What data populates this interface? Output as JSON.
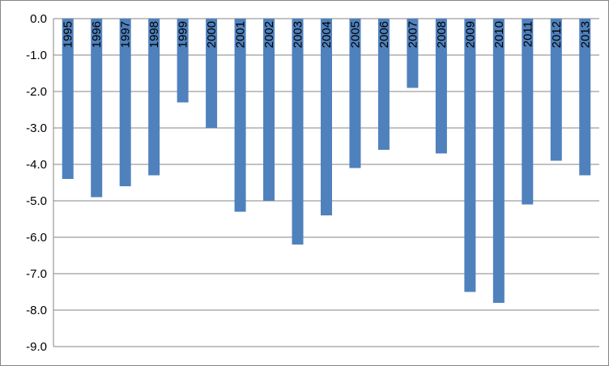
{
  "chart_data": {
    "type": "bar",
    "categories": [
      "1995",
      "1996",
      "1997",
      "1998",
      "1999",
      "2000",
      "2001",
      "2002",
      "2003",
      "2004",
      "2005",
      "2006",
      "2007",
      "2008",
      "2009",
      "2010",
      "2011",
      "2012",
      "2013"
    ],
    "values": [
      -4.4,
      -4.9,
      -4.6,
      -4.3,
      -2.3,
      -3.0,
      -5.3,
      -5.0,
      -6.2,
      -5.4,
      -4.1,
      -3.6,
      -1.9,
      -3.7,
      -7.5,
      -7.8,
      -5.1,
      -3.9,
      -4.3
    ],
    "color": "#4f81bd",
    "ylim": [
      -9,
      0
    ],
    "yticks": [
      {
        "value": 0,
        "label": "0.0"
      },
      {
        "value": -1,
        "label": "-1.0"
      },
      {
        "value": -2,
        "label": "-2.0"
      },
      {
        "value": -3,
        "label": "-3.0"
      },
      {
        "value": -4,
        "label": "-4.0"
      },
      {
        "value": -5,
        "label": "-5.0"
      },
      {
        "value": -6,
        "label": "-6.0"
      },
      {
        "value": -7,
        "label": "-7.0"
      },
      {
        "value": -8,
        "label": "-8.0"
      },
      {
        "value": -9,
        "label": "-9.0"
      }
    ],
    "grid": true
  }
}
